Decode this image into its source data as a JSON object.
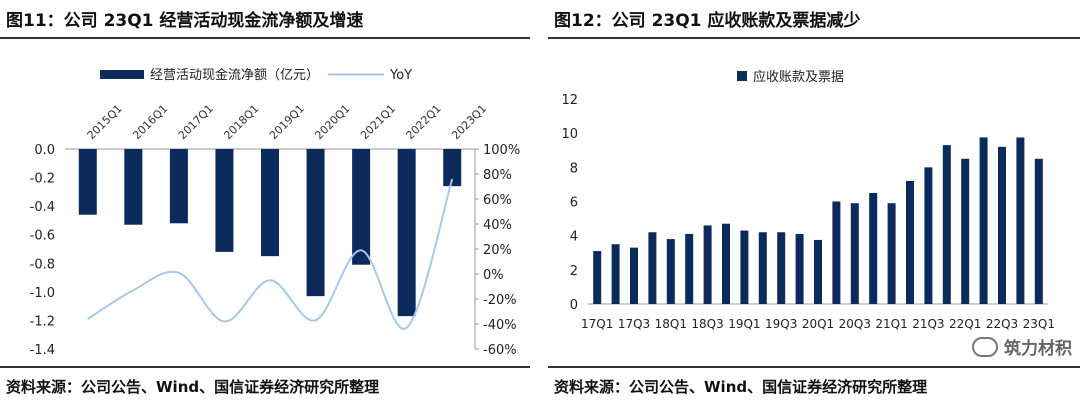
{
  "charts": [
    {
      "figure_title": "图11：公司 23Q1 经营活动现金流净额及增速",
      "source": "资料来源：公司公告、Wind、国信证券经济研究所整理",
      "chart_data": {
        "type": "bar+line",
        "categories": [
          "2015Q1",
          "2016Q1",
          "2017Q1",
          "2018Q1",
          "2019Q1",
          "2020Q1",
          "2021Q1",
          "2022Q1",
          "2023Q1"
        ],
        "series": [
          {
            "name": "经营活动现金流净额（亿元）",
            "type": "bar",
            "axis": "left",
            "values": [
              -0.46,
              -0.53,
              -0.52,
              -0.72,
              -0.75,
              -1.03,
              -0.81,
              -1.17,
              -0.26
            ]
          },
          {
            "name": "YoY",
            "type": "line",
            "axis": "right",
            "values": [
              -36,
              -13,
              1,
              -38,
              -5,
              -37,
              19,
              -43,
              76
            ]
          }
        ],
        "left_axis": {
          "min": -1.4,
          "max": 0.0,
          "step": 0.2,
          "tick_labels": [
            "0.0",
            "-0.2",
            "-0.4",
            "-0.6",
            "-0.8",
            "-1.0",
            "-1.2",
            "-1.4"
          ]
        },
        "right_axis": {
          "min": -60,
          "max": 100,
          "step": 20,
          "tick_labels": [
            "100%",
            "80%",
            "60%",
            "40%",
            "20%",
            "0%",
            "-20%",
            "-40%",
            "-60%"
          ]
        },
        "x_labels_position": "top",
        "legend_position": "top",
        "grid": false,
        "colors": {
          "bar": "#0d2a5c",
          "line": "#a8c8e8"
        }
      }
    },
    {
      "figure_title": "图12：公司 23Q1 应收账款及票据减少",
      "source": "资料来源：公司公告、Wind、国信证券经济研究所整理",
      "chart_data": {
        "type": "bar",
        "categories": [
          "17Q1",
          "17Q2",
          "17Q3",
          "17Q4",
          "18Q1",
          "18Q2",
          "18Q3",
          "18Q4",
          "19Q1",
          "19Q2",
          "19Q3",
          "19Q4",
          "20Q1",
          "20Q2",
          "20Q3",
          "20Q4",
          "21Q1",
          "21Q2",
          "21Q3",
          "21Q4",
          "22Q1",
          "22Q2",
          "22Q3",
          "22Q4",
          "23Q1"
        ],
        "visible_tick_labels": [
          "17Q1",
          "17Q3",
          "18Q1",
          "18Q3",
          "19Q1",
          "19Q3",
          "20Q1",
          "20Q3",
          "21Q1",
          "21Q3",
          "22Q1",
          "22Q3",
          "23Q1"
        ],
        "series": [
          {
            "name": "应收账款及票据",
            "values": [
              3.1,
              3.5,
              3.3,
              4.2,
              3.8,
              4.1,
              4.6,
              4.7,
              4.3,
              4.2,
              4.2,
              4.1,
              3.75,
              6.0,
              5.9,
              6.5,
              5.9,
              7.2,
              8.0,
              9.3,
              8.5,
              9.75,
              9.2,
              9.75,
              8.5
            ]
          }
        ],
        "y_axis": {
          "min": 0,
          "max": 12,
          "step": 2,
          "tick_labels": [
            "0",
            "2",
            "4",
            "6",
            "8",
            "10",
            "12"
          ]
        },
        "legend_position": "top",
        "grid": false,
        "colors": {
          "bar": "#0d2a5c"
        }
      }
    }
  ],
  "watermark": "筑力材积"
}
